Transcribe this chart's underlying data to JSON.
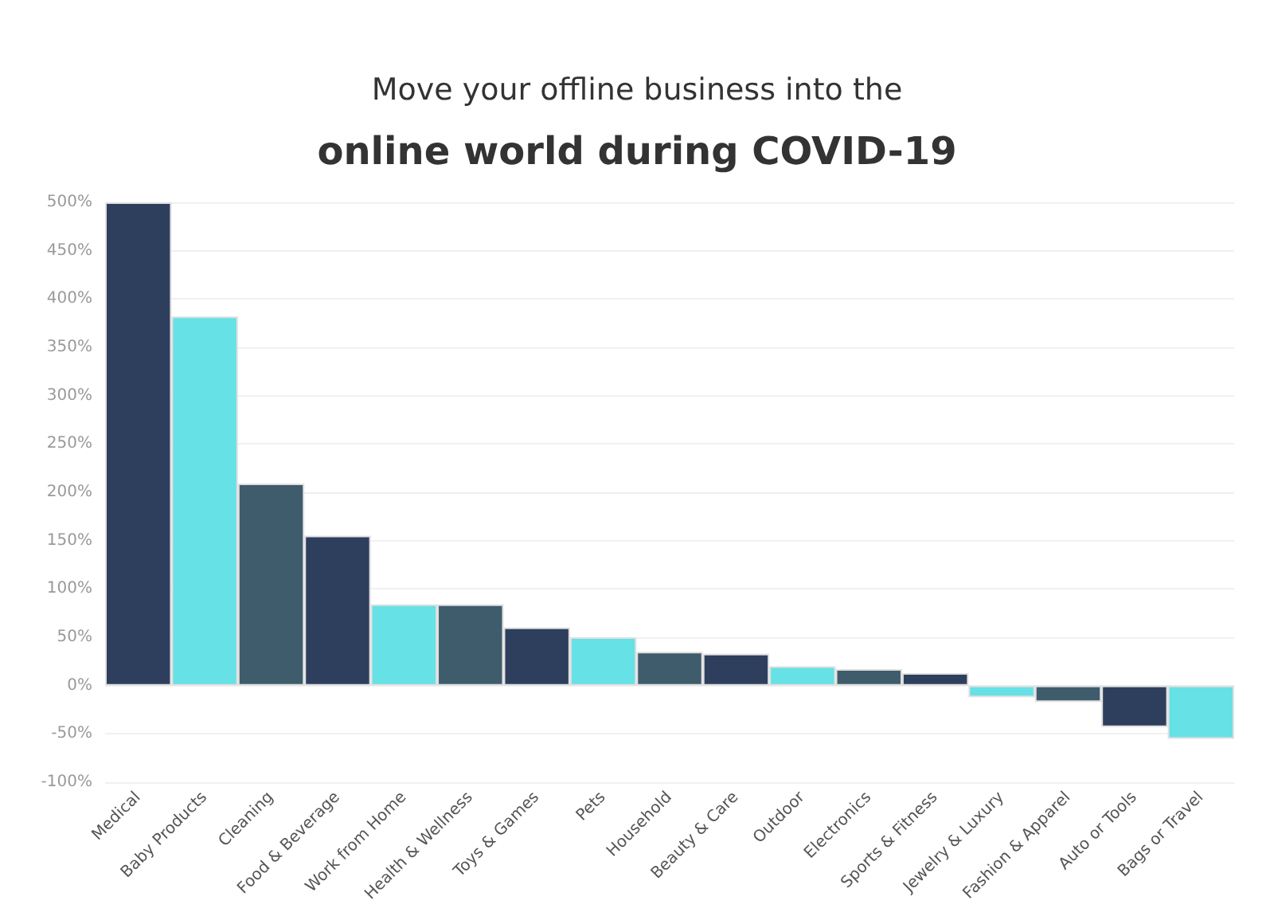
{
  "chart_data": {
    "type": "bar",
    "title": "Move your offline business into the",
    "subtitle": "online world during COVID-19",
    "categories": [
      "Medical",
      "Baby Products",
      "Cleaning",
      "Food & Beverage",
      "Work from Home",
      "Health & Wellness",
      "Toys & Games",
      "Pets",
      "Household",
      "Beauty & Care",
      "Outdoor",
      "Electronics",
      "Sports & Fitness",
      "Jewelry & Luxury",
      "Fashion & Apparel",
      "Auto or Tools",
      "Bags or Travel"
    ],
    "values": [
      500,
      382,
      209,
      155,
      84,
      84,
      60,
      50,
      35,
      33,
      20,
      17,
      13,
      -12,
      -17,
      -43,
      -55
    ],
    "colors": [
      "#2e3f5e",
      "#66e1e5",
      "#3f5c6c",
      "#2e3f5e",
      "#66e1e5",
      "#3f5c6c",
      "#2e3f5e",
      "#66e1e5",
      "#3f5c6c",
      "#2e3f5e",
      "#66e1e5",
      "#3f5c6c",
      "#2e3f5e",
      "#66e1e5",
      "#3f5c6c",
      "#2e3f5e",
      "#66e1e5"
    ],
    "ylim": [
      -100,
      500
    ],
    "yticks": [
      {
        "value": -100,
        "label": "-100%"
      },
      {
        "value": -50,
        "label": "-50%"
      },
      {
        "value": 0,
        "label": "0%"
      },
      {
        "value": 50,
        "label": "50%"
      },
      {
        "value": 100,
        "label": "100%"
      },
      {
        "value": 150,
        "label": "150%"
      },
      {
        "value": 200,
        "label": "200%"
      },
      {
        "value": 250,
        "label": "250%"
      },
      {
        "value": 300,
        "label": "300%"
      },
      {
        "value": 350,
        "label": "350%"
      },
      {
        "value": 400,
        "label": "400%"
      },
      {
        "value": 450,
        "label": "450%"
      },
      {
        "value": 500,
        "label": "500%"
      }
    ],
    "grid": "y"
  }
}
